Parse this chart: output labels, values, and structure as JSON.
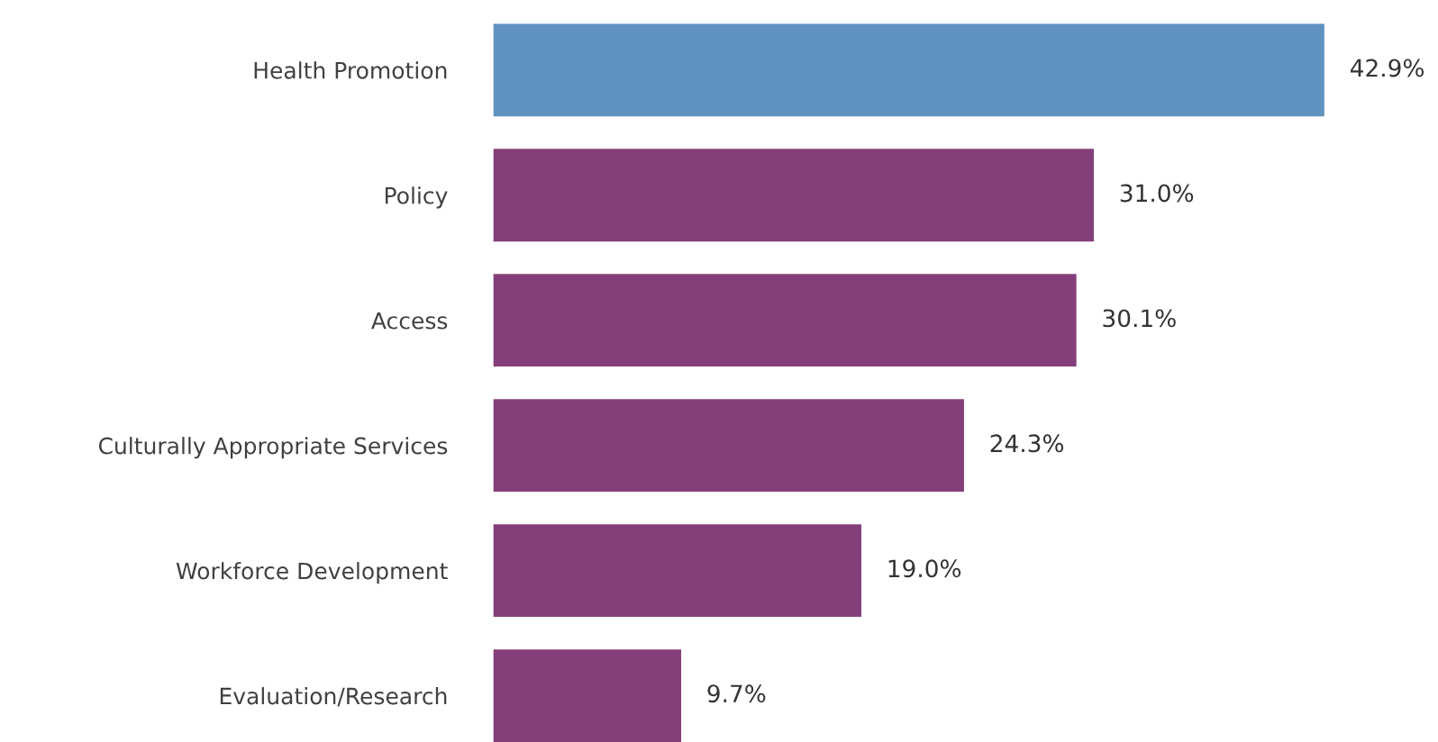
{
  "chart_data": {
    "type": "bar",
    "orientation": "horizontal",
    "categories": [
      "Health Promotion",
      "Policy",
      "Access",
      "Culturally Appropriate Services",
      "Workforce Development",
      "Evaluation/Research"
    ],
    "values": [
      42.9,
      31.0,
      30.1,
      24.3,
      19.0,
      9.7
    ],
    "colors": [
      "#6092c0",
      "#843f7a",
      "#843f7a",
      "#843f7a",
      "#843f7a",
      "#843f7a"
    ],
    "value_labels": [
      "42.9%",
      "31.0%",
      "30.1%",
      "24.3%",
      "19.0%",
      "9.7%"
    ],
    "grid": false,
    "legend": false
  }
}
